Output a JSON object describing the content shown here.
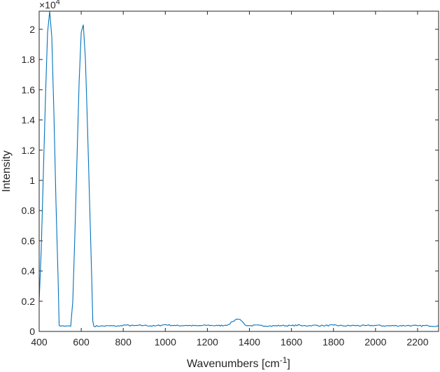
{
  "chart_data": {
    "type": "line",
    "title": "",
    "xlabel_main": "Wavenumbers [cm",
    "xlabel_sup": "-1",
    "xlabel_end": "]",
    "ylabel": "Intensity",
    "y_exponent_base": "×10",
    "y_exponent_power": "4",
    "xlim": [
      400,
      2300
    ],
    "ylim": [
      0,
      21200
    ],
    "x_ticks": [
      400,
      600,
      800,
      1000,
      1200,
      1400,
      1600,
      1800,
      2000,
      2200
    ],
    "x_tick_labels": [
      "400",
      "600",
      "800",
      "1000",
      "1200",
      "1400",
      "1600",
      "1800",
      "2000",
      "2200"
    ],
    "y_ticks": [
      0,
      2000,
      4000,
      6000,
      8000,
      10000,
      12000,
      14000,
      16000,
      18000,
      20000
    ],
    "y_tick_labels": [
      "0",
      "0.2",
      "0.4",
      "0.6",
      "0.8",
      "1",
      "1.2",
      "1.4",
      "1.6",
      "1.8",
      "2"
    ],
    "grid": false,
    "legend": "none",
    "series": [
      {
        "color": "#0072BD",
        "x": [
          400,
          410,
          420,
          430,
          440,
          450,
          460,
          470,
          480,
          490,
          495,
          500,
          510,
          520,
          530,
          540,
          550,
          560,
          570,
          580,
          590,
          600,
          610,
          620,
          630,
          640,
          650,
          655,
          660,
          700,
          750,
          780,
          800,
          850,
          900,
          950,
          1000,
          1050,
          1100,
          1150,
          1200,
          1250,
          1280,
          1300,
          1320,
          1340,
          1355,
          1370,
          1380,
          1400,
          1450,
          1500,
          1550,
          1600,
          1640,
          1650,
          1700,
          1750,
          1800,
          1850,
          1900,
          1950,
          2000,
          2050,
          2100,
          2150,
          2200,
          2250,
          2300
        ],
        "y": [
          2000,
          5500,
          10500,
          15500,
          19800,
          21200,
          19500,
          14500,
          8500,
          3500,
          400,
          350,
          380,
          350,
          360,
          370,
          350,
          2000,
          6500,
          11500,
          16500,
          19800,
          20300,
          18000,
          13500,
          8500,
          3500,
          700,
          350,
          360,
          370,
          350,
          420,
          380,
          400,
          360,
          450,
          380,
          400,
          370,
          410,
          380,
          400,
          450,
          650,
          820,
          800,
          600,
          420,
          380,
          400,
          360,
          390,
          380,
          420,
          370,
          400,
          380,
          410,
          370,
          390,
          380,
          400,
          370,
          380,
          390,
          370,
          380,
          360
        ]
      }
    ]
  }
}
